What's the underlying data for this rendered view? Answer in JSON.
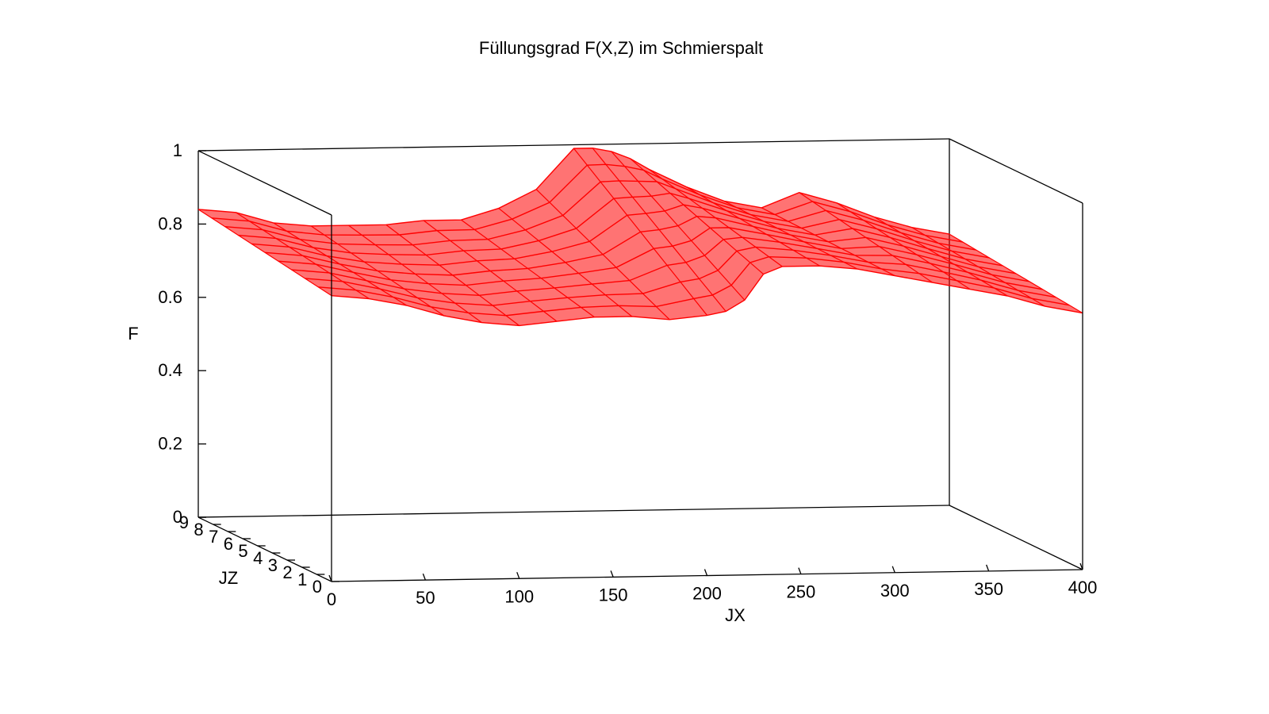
{
  "chart_data": {
    "type": "surface",
    "title": "Füllungsgrad F(X,Z) im Schmierspalt",
    "xlabel": "JX",
    "ylabel": "JZ",
    "zlabel": "F",
    "xlim": [
      0,
      400
    ],
    "ylim": [
      0,
      9
    ],
    "zlim": [
      0,
      1
    ],
    "x_ticks": [
      "0",
      "50",
      "100",
      "150",
      "200",
      "250",
      "300",
      "350",
      "400"
    ],
    "y_ticks": [
      "0",
      "1",
      "2",
      "3",
      "4",
      "5",
      "6",
      "7",
      "8",
      "9"
    ],
    "z_ticks": [
      "0",
      "0.2",
      "0.4",
      "0.6",
      "0.8",
      "1"
    ],
    "surface_color": "#ff0000",
    "series": [
      {
        "x": [
          0,
          20,
          40,
          60,
          80,
          100,
          120,
          140,
          160,
          180,
          200,
          210,
          220,
          230,
          240,
          260,
          280,
          300,
          320,
          340,
          360,
          380,
          400
        ],
        "f_front": [
          0.78,
          0.77,
          0.75,
          0.72,
          0.7,
          0.69,
          0.7,
          0.71,
          0.71,
          0.7,
          0.71,
          0.72,
          0.75,
          0.82,
          0.84,
          0.84,
          0.83,
          0.81,
          0.79,
          0.77,
          0.75,
          0.72,
          0.7
        ],
        "f_back": [
          0.84,
          0.83,
          0.8,
          0.79,
          0.79,
          0.79,
          0.8,
          0.8,
          0.83,
          0.88,
          0.99,
          0.99,
          0.98,
          0.96,
          0.93,
          0.88,
          0.84,
          0.82,
          0.86,
          0.83,
          0.79,
          0.76,
          0.74
        ]
      }
    ]
  }
}
